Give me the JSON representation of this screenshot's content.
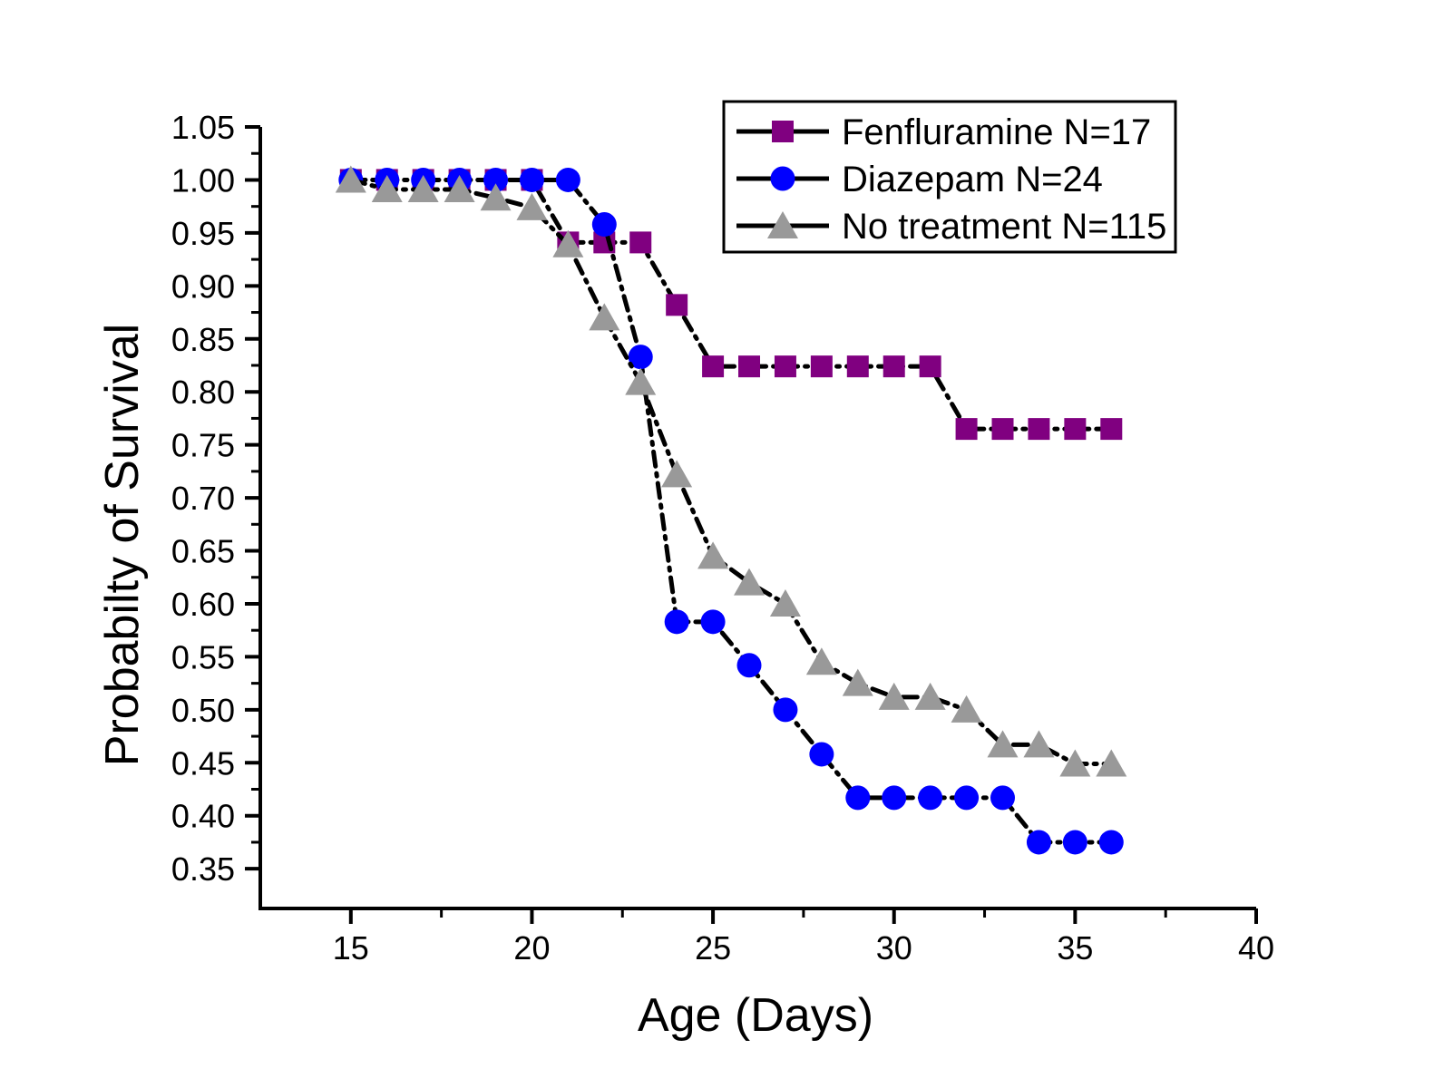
{
  "figure": {
    "background_color": "#ffffff",
    "axis_color": "#000000",
    "line_color": "#000000",
    "line_style": "dash-dot"
  },
  "axes": {
    "x_title": "Age (Days)",
    "y_title": "Probabilty of Survival",
    "x_tick_labels": [
      "15",
      "20",
      "25",
      "30",
      "35",
      "40"
    ],
    "x_ticks_major": [
      15,
      20,
      25,
      30,
      35,
      40
    ],
    "x_ticks_minor": [
      17.5,
      22.5,
      27.5,
      32.5,
      37.5
    ],
    "y_tick_labels": [
      "1.05",
      "1.00",
      "0.95",
      "0.90",
      "0.85",
      "0.80",
      "0.75",
      "0.70",
      "0.65",
      "0.60",
      "0.55",
      "0.50",
      "0.45",
      "0.40",
      "0.35"
    ],
    "y_ticks_major": [
      1.05,
      1.0,
      0.95,
      0.9,
      0.85,
      0.8,
      0.75,
      0.7,
      0.65,
      0.6,
      0.55,
      0.5,
      0.45,
      0.4,
      0.35
    ],
    "y_ticks_minor": [
      1.025,
      0.975,
      0.925,
      0.875,
      0.825,
      0.775,
      0.725,
      0.675,
      0.625,
      0.575,
      0.525,
      0.475,
      0.425,
      0.375
    ],
    "xlim": [
      12.5,
      40
    ],
    "ylim": [
      0.3125,
      1.05
    ]
  },
  "legend": {
    "position": "upper right",
    "entries": [
      {
        "label": "Fenfluramine N=17",
        "marker": "square",
        "color": "#800080"
      },
      {
        "label": "Diazepam N=24",
        "marker": "circle",
        "color": "#0000ff"
      },
      {
        "label": "No treatment N=115",
        "marker": "triangle",
        "color": "#999999"
      }
    ]
  },
  "chart_data": {
    "type": "line",
    "title": "",
    "xlabel": "Age (Days)",
    "ylabel": "Probabilty of Survival",
    "xlim": [
      12.5,
      40
    ],
    "ylim": [
      0.3125,
      1.05
    ],
    "grid": false,
    "legend_position": "upper right",
    "line_style": "dash-dot",
    "x": [
      15,
      16,
      17,
      18,
      19,
      20,
      21,
      22,
      23,
      24,
      25,
      26,
      27,
      28,
      29,
      30,
      31,
      32,
      33,
      34,
      35,
      36
    ],
    "series": [
      {
        "name": "Fenfluramine N=17",
        "marker": "square",
        "marker_color": "#800080",
        "line_color": "#000000",
        "values": [
          1.0,
          1.0,
          1.0,
          1.0,
          1.0,
          1.0,
          0.941,
          0.941,
          0.941,
          0.882,
          0.824,
          0.824,
          0.824,
          0.824,
          0.824,
          0.824,
          0.824,
          0.765,
          0.765,
          0.765,
          0.765,
          0.765
        ]
      },
      {
        "name": "Diazepam N=24",
        "marker": "circle",
        "marker_color": "#0000ff",
        "line_color": "#000000",
        "values": [
          1.0,
          1.0,
          1.0,
          1.0,
          1.0,
          1.0,
          1.0,
          0.958,
          0.833,
          0.583,
          0.583,
          0.542,
          0.5,
          0.458,
          0.417,
          0.417,
          0.417,
          0.417,
          0.417,
          0.375,
          0.375,
          0.375
        ]
      },
      {
        "name": "No treatment N=115",
        "marker": "triangle",
        "marker_color": "#999999",
        "line_color": "#000000",
        "values": [
          1.0,
          0.991,
          0.991,
          0.991,
          0.983,
          0.974,
          0.939,
          0.87,
          0.809,
          0.722,
          0.645,
          0.62,
          0.6,
          0.545,
          0.525,
          0.512,
          0.512,
          0.5,
          0.467,
          0.467,
          0.449,
          0.449
        ]
      }
    ]
  }
}
